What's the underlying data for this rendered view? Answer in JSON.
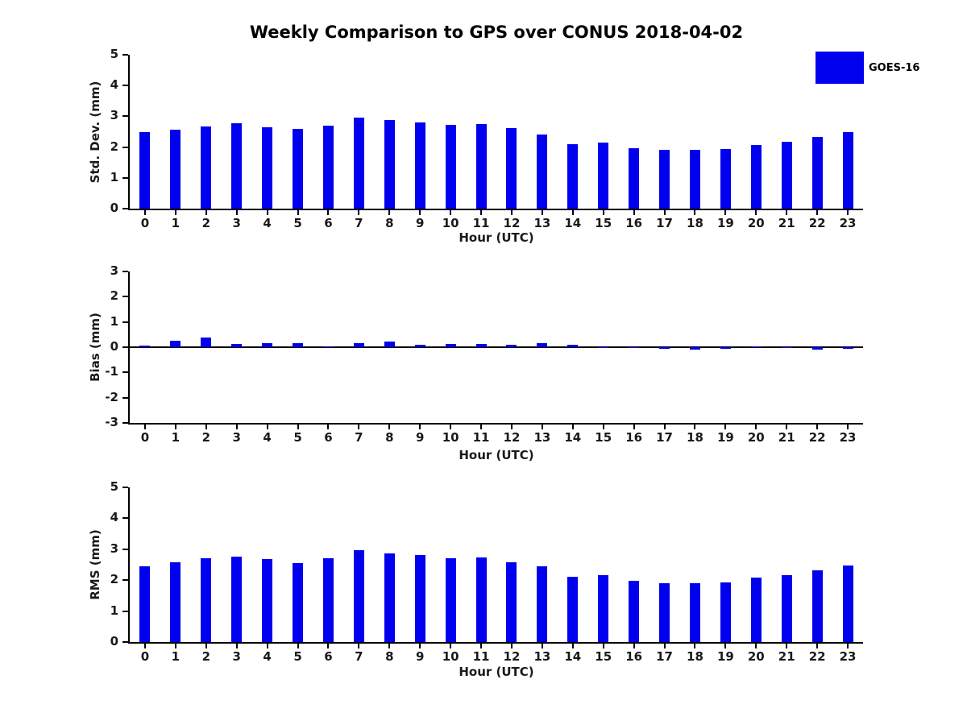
{
  "title": "Weekly Comparison to GPS over CONUS 2018-04-02",
  "legend": {
    "label": "GOES-16",
    "color": "#0000ee"
  },
  "chart_data": [
    {
      "type": "bar",
      "series_name": "GOES-16",
      "ylabel": "Std. Dev. (mm)",
      "xlabel": "Hour (UTC)",
      "categories": [
        "0",
        "1",
        "2",
        "3",
        "4",
        "5",
        "6",
        "7",
        "8",
        "9",
        "10",
        "11",
        "12",
        "13",
        "14",
        "15",
        "16",
        "17",
        "18",
        "19",
        "20",
        "21",
        "22",
        "23"
      ],
      "values": [
        2.48,
        2.57,
        2.67,
        2.78,
        2.65,
        2.58,
        2.7,
        2.97,
        2.88,
        2.81,
        2.72,
        2.74,
        2.61,
        2.42,
        2.1,
        2.14,
        1.96,
        1.9,
        1.9,
        1.95,
        2.08,
        2.16,
        2.34,
        2.49
      ],
      "ylim": [
        0,
        5
      ],
      "yticks": [
        0,
        1,
        2,
        3,
        4,
        5
      ],
      "bar_color": "#0000ee",
      "grid": false,
      "legend_position": "top-right"
    },
    {
      "type": "bar",
      "series_name": "GOES-16",
      "ylabel": "Bias (mm)",
      "xlabel": "Hour (UTC)",
      "categories": [
        "0",
        "1",
        "2",
        "3",
        "4",
        "5",
        "6",
        "7",
        "8",
        "9",
        "10",
        "11",
        "12",
        "13",
        "14",
        "15",
        "16",
        "17",
        "18",
        "19",
        "20",
        "21",
        "22",
        "23"
      ],
      "values": [
        0.05,
        0.26,
        0.38,
        0.13,
        0.15,
        0.16,
        0.02,
        0.15,
        0.23,
        0.1,
        0.13,
        0.13,
        0.08,
        0.16,
        0.1,
        0.0,
        0.0,
        -0.05,
        -0.09,
        -0.07,
        0.03,
        0.0,
        -0.08,
        -0.07
      ],
      "ylim": [
        -3,
        3
      ],
      "yticks": [
        -3,
        -2,
        -1,
        0,
        1,
        2,
        3
      ],
      "bar_color": "#0000ee",
      "grid": false,
      "legend_position": "none"
    },
    {
      "type": "bar",
      "series_name": "GOES-16",
      "ylabel": "RMS (mm)",
      "xlabel": "Hour (UTC)",
      "categories": [
        "0",
        "1",
        "2",
        "3",
        "4",
        "5",
        "6",
        "7",
        "8",
        "9",
        "10",
        "11",
        "12",
        "13",
        "14",
        "15",
        "16",
        "17",
        "18",
        "19",
        "20",
        "21",
        "22",
        "23"
      ],
      "values": [
        2.46,
        2.58,
        2.7,
        2.77,
        2.67,
        2.56,
        2.71,
        2.97,
        2.87,
        2.82,
        2.72,
        2.74,
        2.59,
        2.44,
        2.12,
        2.16,
        1.98,
        1.9,
        1.89,
        1.94,
        2.08,
        2.16,
        2.33,
        2.48
      ],
      "ylim": [
        0,
        5
      ],
      "yticks": [
        0,
        1,
        2,
        3,
        4,
        5
      ],
      "bar_color": "#0000ee",
      "grid": false,
      "legend_position": "none"
    }
  ]
}
